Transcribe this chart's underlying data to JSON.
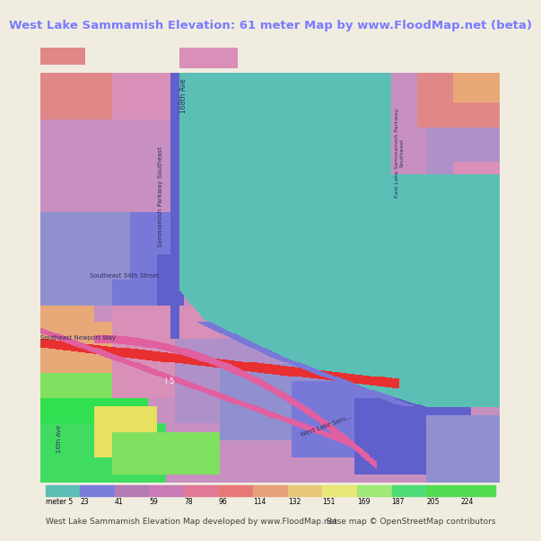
{
  "title": "West Lake Sammamish Elevation: 61 meter Map by www.FloodMap.net (beta)",
  "title_color": "#7b7bff",
  "title_fontsize": 9.5,
  "bg_color": "#f0ede0",
  "colorbar_labels": [
    "meter 5",
    "23",
    "41",
    "59",
    "78",
    "96",
    "114",
    "132",
    "151",
    "169",
    "187",
    "205",
    "224"
  ],
  "colorbar_values": [
    5,
    23,
    41,
    59,
    78,
    96,
    114,
    132,
    151,
    169,
    187,
    205,
    224
  ],
  "colorbar_colors": [
    "#5bbfb5",
    "#7b7bdc",
    "#b47bb4",
    "#c87bb4",
    "#e07896",
    "#e87878",
    "#e8a078",
    "#e8c878",
    "#e8e878",
    "#a0e878",
    "#50dc78",
    "#50dc50",
    "#50dc50"
  ],
  "footer_text1": "West Lake Sammamish Elevation Map developed by www.FloodMap.net",
  "footer_text2": "Base map © OpenStreetMap contributors",
  "footer_fontsize": 6.5,
  "fig_width": 5.12,
  "fig_height": 5.82
}
